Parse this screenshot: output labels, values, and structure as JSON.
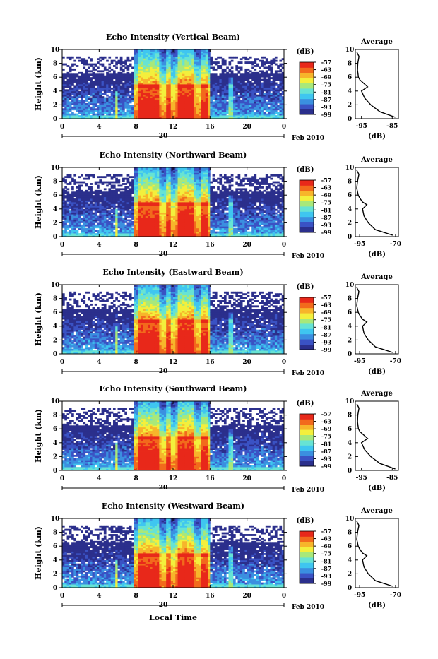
{
  "figure": {
    "xlabel_bottom": "Local Time",
    "date_label": "Feb 2010",
    "day_label": "20",
    "panel_height_label": "Height (km)",
    "average_title": "Average",
    "colorbar_unit": "(dB)",
    "avg_xlabel": "(dB)"
  },
  "chart_data": [
    {
      "type": "heatmap",
      "title": "Echo Intensity (Vertical Beam)",
      "ylabel": "Height (km)",
      "x_ticks": [
        "0",
        "4",
        "8",
        "12",
        "16",
        "20",
        "0"
      ],
      "y_ticks": [
        "0",
        "2",
        "4",
        "6",
        "8",
        "10"
      ],
      "xlim": [
        0,
        24
      ],
      "ylim": [
        0,
        10
      ],
      "colorbar_label": "(dB)",
      "colorbar_ticks": [
        "-57",
        "-63",
        "-69",
        "-75",
        "-81",
        "-87",
        "-93",
        "-99"
      ],
      "colorbar_range": [
        -99,
        -57
      ],
      "precip_segments": [
        [
          5.8,
          6.0,
          4,
          -75
        ],
        [
          7.8,
          10.8,
          10,
          -66
        ],
        [
          10.8,
          12.2,
          10,
          -68
        ],
        [
          12.2,
          14.6,
          10,
          -65
        ],
        [
          14.6,
          16.0,
          10,
          -67
        ],
        [
          18.0,
          18.6,
          6,
          -80
        ]
      ],
      "average_profile": {
        "title": "Average",
        "xlabel": "(dB)",
        "x_ticks": [
          "-95",
          "-85"
        ],
        "xlim": [
          -97,
          -83
        ],
        "heights": [
          0.2,
          1,
          2,
          3,
          4,
          4.6,
          5,
          5.6,
          6,
          7,
          8,
          9,
          9.6
        ],
        "values": [
          -84,
          -89,
          -92,
          -94,
          -95,
          -93,
          -94,
          -95.5,
          -96,
          -96.3,
          -96.2,
          -95.8,
          -96.5
        ]
      }
    },
    {
      "type": "heatmap",
      "title": "Echo Intensity (Northward Beam)",
      "ylabel": "Height (km)",
      "x_ticks": [
        "0",
        "4",
        "8",
        "12",
        "16",
        "20",
        "0"
      ],
      "y_ticks": [
        "0",
        "2",
        "4",
        "6",
        "8",
        "10"
      ],
      "xlim": [
        0,
        24
      ],
      "ylim": [
        0,
        10
      ],
      "colorbar_label": "(dB)",
      "colorbar_ticks": [
        "-57",
        "-63",
        "-69",
        "-75",
        "-81",
        "-87",
        "-93",
        "-99"
      ],
      "colorbar_range": [
        -99,
        -57
      ],
      "precip_segments": [
        [
          5.8,
          6.0,
          4,
          -75
        ],
        [
          7.8,
          10.8,
          10,
          -66
        ],
        [
          10.8,
          12.2,
          10,
          -68
        ],
        [
          12.2,
          14.6,
          10,
          -65
        ],
        [
          14.6,
          16.0,
          10,
          -67
        ],
        [
          18.0,
          18.6,
          6,
          -80
        ]
      ],
      "average_profile": {
        "title": "Average",
        "xlabel": "(dB)",
        "x_ticks": [
          "-95",
          "-70"
        ],
        "xlim": [
          -98,
          -68
        ],
        "heights": [
          0.2,
          1,
          2,
          3,
          4,
          4.6,
          5,
          5.6,
          6,
          7,
          8,
          9,
          9.6
        ],
        "values": [
          -72,
          -84,
          -89,
          -92,
          -93,
          -90,
          -93,
          -95,
          -96,
          -97,
          -96.5,
          -95.5,
          -97
        ]
      }
    },
    {
      "type": "heatmap",
      "title": "Echo Intensity (Eastward Beam)",
      "ylabel": "Height (km)",
      "x_ticks": [
        "0",
        "4",
        "8",
        "12",
        "16",
        "20",
        "0"
      ],
      "y_ticks": [
        "0",
        "2",
        "4",
        "6",
        "8",
        "10"
      ],
      "xlim": [
        0,
        24
      ],
      "ylim": [
        0,
        10
      ],
      "colorbar_label": "(dB)",
      "colorbar_ticks": [
        "-57",
        "-63",
        "-69",
        "-75",
        "-81",
        "-87",
        "-93",
        "-99"
      ],
      "colorbar_range": [
        -99,
        -57
      ],
      "precip_segments": [
        [
          5.8,
          6.0,
          4,
          -75
        ],
        [
          7.8,
          10.8,
          10,
          -66
        ],
        [
          10.8,
          12.2,
          10,
          -68
        ],
        [
          12.2,
          14.6,
          10,
          -65
        ],
        [
          14.6,
          16.0,
          10,
          -67
        ],
        [
          18.0,
          18.6,
          6,
          -80
        ]
      ],
      "average_profile": {
        "title": "Average",
        "xlabel": "(dB)",
        "x_ticks": [
          "-95",
          "-70"
        ],
        "xlim": [
          -98,
          -68
        ],
        "heights": [
          0.2,
          1,
          2,
          3,
          4,
          4.6,
          5,
          5.6,
          6,
          7,
          8,
          9,
          9.6
        ],
        "values": [
          -72,
          -84,
          -89,
          -92,
          -93,
          -90,
          -93,
          -95,
          -96,
          -97,
          -96.5,
          -95.5,
          -97
        ]
      }
    },
    {
      "type": "heatmap",
      "title": "Echo Intensity (Southward Beam)",
      "ylabel": "Height (km)",
      "x_ticks": [
        "0",
        "4",
        "8",
        "12",
        "16",
        "20",
        "0"
      ],
      "y_ticks": [
        "0",
        "2",
        "4",
        "6",
        "8",
        "10"
      ],
      "xlim": [
        0,
        24
      ],
      "ylim": [
        0,
        10
      ],
      "colorbar_label": "(dB)",
      "colorbar_ticks": [
        "-57",
        "-63",
        "-69",
        "-75",
        "-81",
        "-87",
        "-93",
        "-99"
      ],
      "colorbar_range": [
        -99,
        -57
      ],
      "precip_segments": [
        [
          5.8,
          6.0,
          4,
          -75
        ],
        [
          7.8,
          10.8,
          10,
          -66
        ],
        [
          10.8,
          12.2,
          10,
          -68
        ],
        [
          12.2,
          14.6,
          10,
          -65
        ],
        [
          14.6,
          16.0,
          10,
          -67
        ],
        [
          18.0,
          18.6,
          6,
          -80
        ]
      ],
      "average_profile": {
        "title": "Average",
        "xlabel": "(dB)",
        "x_ticks": [
          "-95",
          "-85"
        ],
        "xlim": [
          -97,
          -83
        ],
        "heights": [
          0.2,
          1,
          2,
          3,
          4,
          4.6,
          5,
          5.6,
          6,
          7,
          8,
          9,
          9.6
        ],
        "values": [
          -84,
          -89,
          -92,
          -94,
          -95,
          -93,
          -94,
          -95.5,
          -96,
          -96.3,
          -96.2,
          -95.8,
          -96.5
        ]
      }
    },
    {
      "type": "heatmap",
      "title": "Echo Intensity (Westward Beam)",
      "ylabel": "Height (km)",
      "x_ticks": [
        "0",
        "4",
        "8",
        "12",
        "16",
        "20",
        "0"
      ],
      "y_ticks": [
        "0",
        "2",
        "4",
        "6",
        "8",
        "10"
      ],
      "xlim": [
        0,
        24
      ],
      "ylim": [
        0,
        10
      ],
      "colorbar_label": "(dB)",
      "colorbar_ticks": [
        "-57",
        "-63",
        "-69",
        "-75",
        "-81",
        "-87",
        "-93",
        "-99"
      ],
      "colorbar_range": [
        -99,
        -57
      ],
      "precip_segments": [
        [
          5.8,
          6.0,
          4,
          -75
        ],
        [
          7.8,
          10.8,
          10,
          -66
        ],
        [
          10.8,
          12.2,
          10,
          -68
        ],
        [
          12.2,
          14.6,
          10,
          -65
        ],
        [
          14.6,
          16.0,
          10,
          -67
        ],
        [
          18.0,
          18.6,
          6,
          -80
        ]
      ],
      "average_profile": {
        "title": "Average",
        "xlabel": "(dB)",
        "x_ticks": [
          "-95",
          "-70"
        ],
        "xlim": [
          -98,
          -68
        ],
        "heights": [
          0.2,
          1,
          2,
          3,
          4,
          4.6,
          5,
          5.6,
          6,
          7,
          8,
          9,
          9.6
        ],
        "values": [
          -72,
          -84,
          -89,
          -92,
          -93,
          -90,
          -93,
          -95,
          -96,
          -97,
          -96.5,
          -95.5,
          -97
        ]
      }
    }
  ],
  "colors": {
    "colormap": [
      "#2b2f8c",
      "#3a52c4",
      "#3b8fe0",
      "#3fc6f0",
      "#67e3d4",
      "#a8e87a",
      "#f3ef3c",
      "#f7b52b",
      "#f26a1c",
      "#e8281a"
    ],
    "axis": "#000000",
    "background": "#ffffff"
  }
}
